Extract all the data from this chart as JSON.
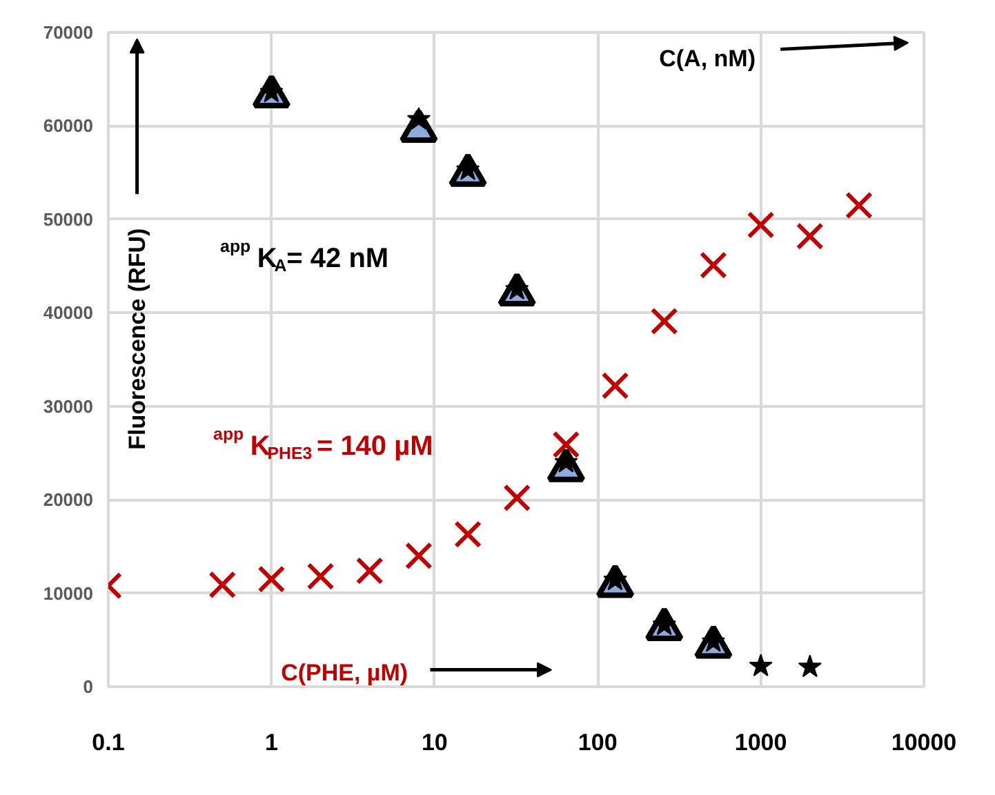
{
  "chart_data": {
    "type": "scatter",
    "ylabel": "Fluorescence (RFU)",
    "log": "x",
    "grid": true,
    "xlim": [
      0.1,
      10000
    ],
    "xticks": [
      0.1,
      1,
      10,
      100,
      1000,
      10000
    ],
    "ylim": [
      0,
      70000
    ],
    "yticks": [
      0,
      10000,
      20000,
      30000,
      40000,
      50000,
      60000,
      70000
    ],
    "annotations": [
      "C(A, nM)",
      "C(PHE, µM)",
      "$^{app}$K$_{A}$= 42 nM",
      "$^{app}$K$_{PHE3}$= 140 µM"
    ],
    "series": [
      {
        "color": "#c00000",
        "marker": "cross",
        "x": [
          0.1,
          0.5,
          1,
          2,
          4,
          8,
          16,
          32,
          64,
          128,
          256,
          512,
          1000,
          2000,
          4000
        ],
        "values": [
          10800,
          10900,
          11500,
          11800,
          12400,
          14000,
          16300,
          20200,
          25900,
          32200,
          39100,
          45100,
          49400,
          48200,
          51500
        ]
      },
      {
        "color": "#8faadc",
        "marker": "triangle",
        "x": [
          1,
          8,
          16,
          32,
          64,
          128,
          256,
          512
        ],
        "values": [
          63200,
          59500,
          54800,
          42000,
          23200,
          10800,
          6200,
          4300
        ]
      },
      {
        "color": "#000000",
        "marker": "star",
        "x": [
          1,
          8,
          16,
          32,
          64,
          128,
          256,
          512,
          1000,
          2000
        ],
        "values": [
          63600,
          60700,
          55300,
          42500,
          24000,
          11400,
          6600,
          4800,
          2200,
          2100
        ]
      }
    ]
  }
}
